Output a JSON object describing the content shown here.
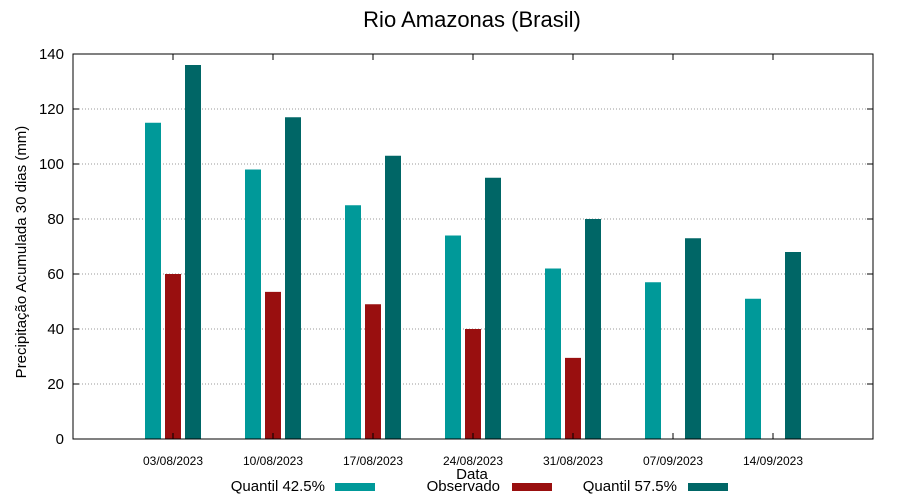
{
  "chart_data": {
    "type": "bar",
    "title": "Rio Amazonas (Brasil)",
    "xlabel": "Data",
    "ylabel": "Precipitação Acumulada 30 dias (mm)",
    "ylim": [
      0,
      140
    ],
    "yticks": [
      0,
      20,
      40,
      60,
      80,
      100,
      120,
      140
    ],
    "categories": [
      "03/08/2023",
      "10/08/2023",
      "17/08/2023",
      "24/08/2023",
      "31/08/2023",
      "07/09/2023",
      "14/09/2023"
    ],
    "grid": true,
    "legend_position": "bottom",
    "series": [
      {
        "name": "Quantil 42.5%",
        "color": "#009999",
        "values": [
          115,
          98,
          85,
          74,
          62,
          57,
          51
        ]
      },
      {
        "name": "Observado",
        "color": "#990f0f",
        "values": [
          60,
          53.5,
          49,
          40,
          29.5,
          null,
          null
        ]
      },
      {
        "name": "Quantil 57.5%",
        "color": "#006666",
        "values": [
          136,
          117,
          103,
          95,
          80,
          73,
          68
        ]
      }
    ]
  }
}
